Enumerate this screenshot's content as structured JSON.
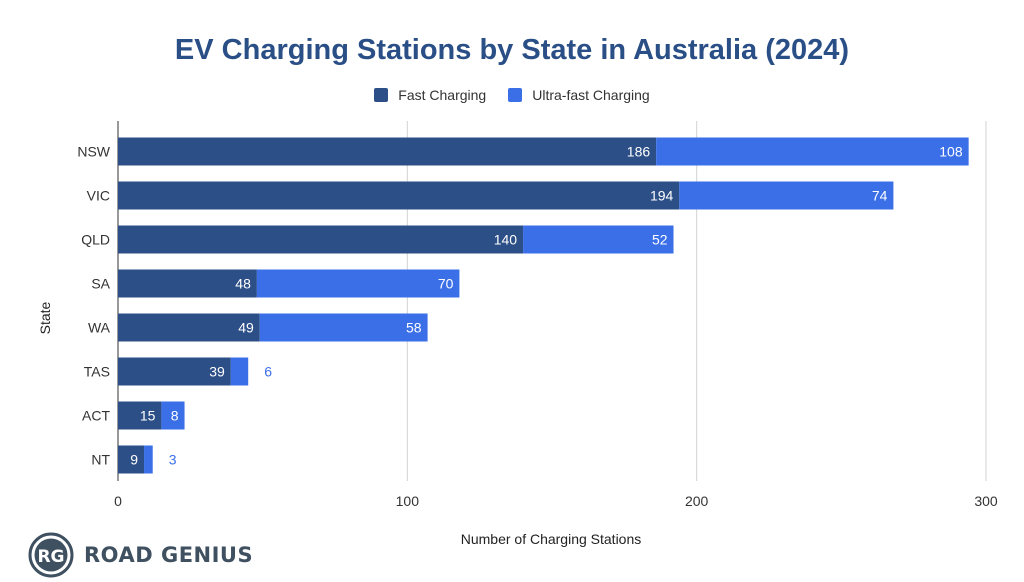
{
  "chart_data": {
    "type": "bar",
    "orientation": "horizontal",
    "stacked": true,
    "title": "EV Charging Stations by State in Australia (2024)",
    "xlabel": "Number of Charging Stations",
    "ylabel": "State",
    "categories": [
      "NSW",
      "VIC",
      "QLD",
      "SA",
      "WA",
      "TAS",
      "ACT",
      "NT"
    ],
    "series": [
      {
        "name": "Fast Charging",
        "color": "#2d4f87",
        "values": [
          186,
          194,
          140,
          48,
          49,
          39,
          15,
          9
        ]
      },
      {
        "name": "Ultra-fast Charging",
        "color": "#3b6fe8",
        "values": [
          108,
          74,
          52,
          70,
          58,
          6,
          8,
          3
        ]
      }
    ],
    "xlim": [
      0,
      300
    ],
    "xticks": [
      0,
      100,
      200,
      300
    ],
    "grid": true,
    "legend_position": "top-center",
    "data_labels": true
  },
  "brand": {
    "logo_mark": "RG",
    "logo_text": "ROAD GENIUS"
  }
}
